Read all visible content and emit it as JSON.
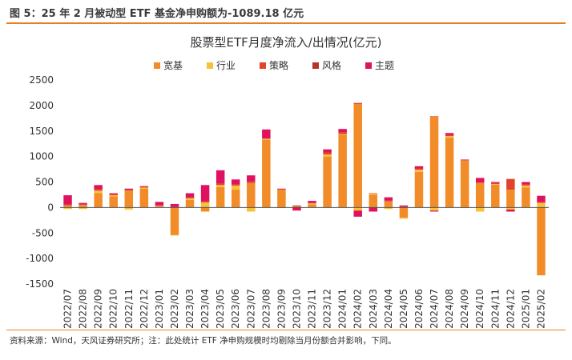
{
  "figure_title": "图 5：25 年 2 月被动型 ETF 基金净申购额为-1089.18 亿元",
  "footnote": "资料来源：Wind，天风证券研究所；注：此处统计 ETF 净申购规模时均剔除当月份额合并影响，下同。",
  "colors": {
    "accent": "#e67e22",
    "宽基": "#f28c28",
    "行业": "#f7c238",
    "策略": "#e0442c",
    "风格": "#b83228",
    "主题": "#e0115f"
  },
  "chart_data": {
    "type": "bar",
    "stacked": true,
    "title": "股票型ETF月度净流入/出情况(亿元)",
    "xlabel": "",
    "ylabel": "",
    "ylim": [
      -1500,
      2500
    ],
    "yticks": [
      -1500,
      -1000,
      -500,
      0,
      500,
      1000,
      1500,
      2000,
      2500
    ],
    "grid": false,
    "legend_position": "top",
    "categories": [
      "2022/07",
      "2022/08",
      "2022/09",
      "2022/10",
      "2022/11",
      "2022/12",
      "2023/01",
      "2023/02",
      "2023/03",
      "2023/04",
      "2023/05",
      "2023/06",
      "2023/07",
      "2023/08",
      "2023/09",
      "2023/10",
      "2023/11",
      "2023/12",
      "2024/01",
      "2024/02",
      "2024/03",
      "2024/04",
      "2024/05",
      "2024/06",
      "2024/07",
      "2024/08",
      "2024/09",
      "2024/10",
      "2024/11",
      "2024/12",
      "2025/01",
      "2025/02"
    ],
    "series": [
      {
        "name": "宽基",
        "values": [
          40,
          50,
          280,
          220,
          330,
          370,
          20,
          -540,
          150,
          -80,
          400,
          350,
          480,
          1330,
          350,
          20,
          60,
          1000,
          1430,
          2030,
          250,
          120,
          -200,
          700,
          1780,
          1370,
          920,
          480,
          450,
          350,
          390,
          -1330
        ]
      },
      {
        "name": "行业",
        "values": [
          -30,
          -30,
          50,
          20,
          -40,
          20,
          10,
          -10,
          30,
          100,
          40,
          80,
          -80,
          20,
          -10,
          0,
          20,
          40,
          10,
          -60,
          20,
          -30,
          -20,
          40,
          -60,
          30,
          -10,
          -80,
          10,
          -40,
          40,
          90
        ]
      },
      {
        "name": "策略",
        "values": [
          20,
          20,
          30,
          20,
          20,
          20,
          10,
          10,
          20,
          20,
          30,
          20,
          30,
          0,
          10,
          20,
          10,
          40,
          40,
          20,
          10,
          20,
          20,
          20,
          10,
          20,
          10,
          20,
          20,
          210,
          20,
          20
        ]
      },
      {
        "name": "风格",
        "values": [
          0,
          0,
          0,
          0,
          0,
          0,
          0,
          0,
          0,
          0,
          0,
          0,
          0,
          0,
          0,
          0,
          0,
          0,
          0,
          0,
          0,
          0,
          0,
          0,
          0,
          0,
          0,
          0,
          0,
          0,
          0,
          0
        ]
      },
      {
        "name": "主题",
        "values": [
          180,
          20,
          80,
          20,
          20,
          10,
          70,
          60,
          80,
          320,
          260,
          100,
          120,
          180,
          10,
          -60,
          40,
          60,
          60,
          -120,
          -80,
          60,
          20,
          50,
          -20,
          40,
          10,
          80,
          20,
          -40,
          50,
          120
        ]
      }
    ]
  }
}
